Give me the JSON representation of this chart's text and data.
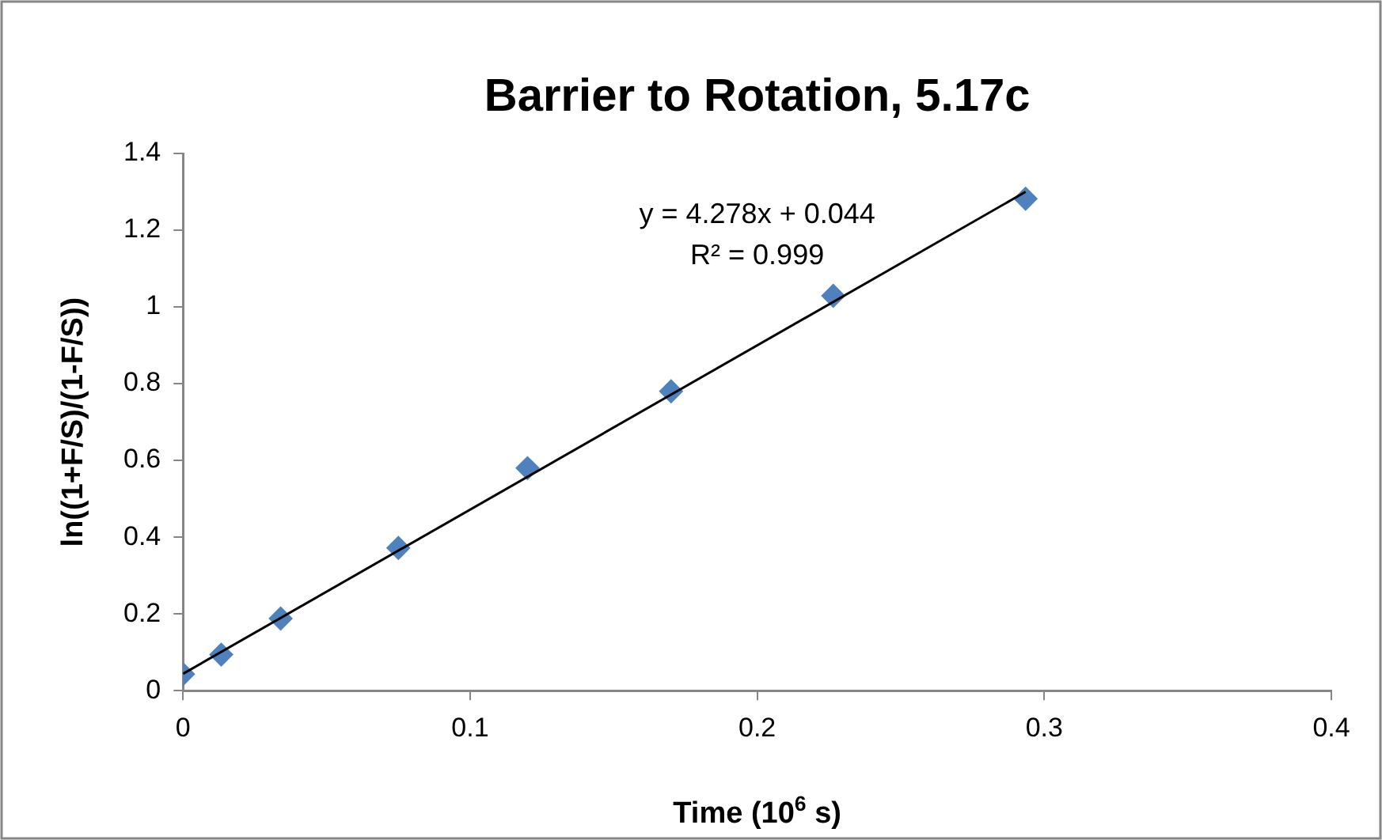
{
  "chart_data": {
    "type": "scatter",
    "title": "Barrier to Rotation, 5.17c",
    "xlabel": "Time (10$^{6}$ s)",
    "ylabel": "ln((1+F/S)/(1-F/S))",
    "x": [
      0,
      0.0133,
      0.034,
      0.075,
      0.12,
      0.17,
      0.2265,
      0.2935
    ],
    "series": [
      {
        "color": "#4f81bd",
        "values": [
          0.043,
          0.094,
          0.188,
          0.372,
          0.58,
          0.78,
          1.029,
          1.282
        ],
        "marker": "diamond"
      },
      {
        "type": "line",
        "x": [
          0,
          0.2935
        ],
        "color": "#000000",
        "values": [
          0.044,
          1.3
        ],
        "marker": "none"
      }
    ],
    "annotations": [
      "y = 4.278x + 0.044",
      "R² = 0.999"
    ],
    "xlim": [
      0,
      0.4
    ],
    "xticks": [
      0,
      0.1,
      0.2,
      0.3,
      0.4
    ],
    "ylim": [
      0,
      1.4
    ],
    "yticks": [
      0,
      0.2,
      0.4,
      0.6,
      0.8,
      1,
      1.2,
      1.4
    ],
    "grid": false,
    "legend": false
  }
}
